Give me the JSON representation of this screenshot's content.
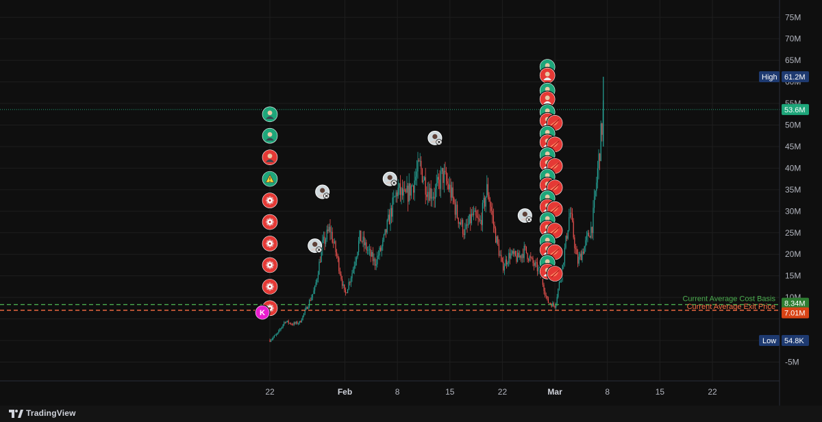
{
  "brand": {
    "name": "TradingView",
    "logo_icon": "tradingview-logo-icon"
  },
  "colors": {
    "background": "#0f0f0f",
    "grid": "#1e1e1e",
    "candle_up": "#26a69a",
    "candle_down": "#ef5350",
    "cost_basis": "#4caf50",
    "exit_price": "#ff7043",
    "last_price": "#1ea67a",
    "high_low_tag": "#1e3a70",
    "marker_buy": "#1ea67a",
    "marker_sell": "#e53935",
    "marker_magenta": "#e91ecf"
  },
  "chart_data": {
    "type": "candlestick",
    "y_axis": {
      "ticks": [
        -5,
        0,
        5,
        10,
        15,
        20,
        25,
        30,
        35,
        40,
        45,
        50,
        55,
        60,
        65,
        70,
        75
      ],
      "tick_labels": [
        "-5M",
        "",
        "",
        "10M",
        "15M",
        "20M",
        "25M",
        "30M",
        "35M",
        "40M",
        "45M",
        "50M",
        "55M",
        "60M",
        "65M",
        "70M",
        "75M"
      ],
      "range": [
        -7,
        78
      ],
      "unit": "M"
    },
    "x_axis": {
      "ticks": [
        "2025-01-22",
        "2025-02-01",
        "2025-02-08",
        "2025-02-15",
        "2025-02-22",
        "2025-03-01",
        "2025-03-08",
        "2025-03-15",
        "2025-03-22"
      ],
      "tick_labels": [
        "22",
        "Feb",
        "8",
        "15",
        "22",
        "Mar",
        "8",
        "15",
        "22"
      ],
      "major_ticks": [
        "Feb",
        "Mar"
      ],
      "range": [
        "2025-01-02",
        "2025-03-31"
      ]
    },
    "price_path": [
      [
        "2025-01-22",
        0.05
      ],
      [
        "2025-01-23",
        1.5
      ],
      [
        "2025-01-24",
        4.5
      ],
      [
        "2025-01-25",
        3.8
      ],
      [
        "2025-01-26",
        4.2
      ],
      [
        "2025-01-27",
        8.0
      ],
      [
        "2025-01-28",
        12.0
      ],
      [
        "2025-01-29",
        22.0
      ],
      [
        "2025-01-30",
        26.0
      ],
      [
        "2025-01-31",
        19.0
      ],
      [
        "2025-02-01",
        10.5
      ],
      [
        "2025-02-02",
        16.0
      ],
      [
        "2025-02-03",
        24.0
      ],
      [
        "2025-02-04",
        21.0
      ],
      [
        "2025-02-05",
        18.0
      ],
      [
        "2025-02-06",
        22.0
      ],
      [
        "2025-02-07",
        29.0
      ],
      [
        "2025-02-08",
        35.0
      ],
      [
        "2025-02-09",
        33.0
      ],
      [
        "2025-02-10",
        36.0
      ],
      [
        "2025-02-11",
        40.5
      ],
      [
        "2025-02-12",
        35.0
      ],
      [
        "2025-02-13",
        34.0
      ],
      [
        "2025-02-14",
        38.5
      ],
      [
        "2025-02-15",
        35.0
      ],
      [
        "2025-02-16",
        29.0
      ],
      [
        "2025-02-17",
        25.0
      ],
      [
        "2025-02-18",
        29.0
      ],
      [
        "2025-02-19",
        27.0
      ],
      [
        "2025-02-20",
        35.5
      ],
      [
        "2025-02-21",
        25.0
      ],
      [
        "2025-02-22",
        17.0
      ],
      [
        "2025-02-23",
        20.0
      ],
      [
        "2025-02-24",
        19.0
      ],
      [
        "2025-02-25",
        21.0
      ],
      [
        "2025-02-26",
        18.0
      ],
      [
        "2025-02-27",
        16.0
      ],
      [
        "2025-02-28",
        9.0
      ],
      [
        "2025-03-01",
        8.0
      ],
      [
        "2025-03-02",
        17.0
      ],
      [
        "2025-03-03",
        30.0
      ],
      [
        "2025-03-04",
        18.0
      ],
      [
        "2025-03-05",
        22.0
      ],
      [
        "2025-03-06",
        27.0
      ],
      [
        "2025-03-07",
        45.0
      ],
      [
        "2025-03-07T12:00",
        53.6
      ]
    ],
    "high": {
      "label": "High",
      "value": 61.2,
      "display": "61.2M",
      "date": "2025-03-07"
    },
    "low": {
      "label": "Low",
      "value": 0.0548,
      "display": "54.8K",
      "date": "2025-01-22"
    },
    "last_price": {
      "value": 53.6,
      "display": "53.6M"
    },
    "lines": [
      {
        "name": "Current Average Cost Basis",
        "value": 8.34,
        "display": "8.34M",
        "color": "#4caf50"
      },
      {
        "name": "Current Average Exit Price",
        "value": 7.01,
        "display": "7.01M",
        "color": "#ff7043"
      }
    ],
    "markers": [
      {
        "date": "2025-01-22",
        "value": 52.5,
        "kind": "buy",
        "icon": "avatar-man-icon"
      },
      {
        "date": "2025-01-22",
        "value": 47.5,
        "kind": "buy",
        "icon": "avatar-man-icon"
      },
      {
        "date": "2025-01-22",
        "value": 42.5,
        "kind": "sell",
        "icon": "avatar-man-icon"
      },
      {
        "date": "2025-01-22",
        "value": 37.5,
        "kind": "buy",
        "icon": "warning-icon"
      },
      {
        "date": "2025-01-22",
        "value": 32.5,
        "kind": "sell",
        "icon": "gear-icon"
      },
      {
        "date": "2025-01-22",
        "value": 27.5,
        "kind": "sell",
        "icon": "gear-icon"
      },
      {
        "date": "2025-01-22",
        "value": 22.5,
        "kind": "sell",
        "icon": "gear-icon"
      },
      {
        "date": "2025-01-22",
        "value": 17.5,
        "kind": "sell",
        "icon": "gear-icon"
      },
      {
        "date": "2025-01-22",
        "value": 12.5,
        "kind": "sell",
        "icon": "gear-icon"
      },
      {
        "date": "2025-01-22",
        "value": 7.5,
        "kind": "sell",
        "icon": "gear-icon"
      },
      {
        "date": "2025-01-21",
        "value": 6.5,
        "kind": "magenta",
        "icon": "k-letter-icon"
      },
      {
        "date": "2025-01-29",
        "value": 34.5,
        "kind": "social",
        "icon": "x-social-icon"
      },
      {
        "date": "2025-01-28",
        "value": 22.0,
        "kind": "social",
        "icon": "x-social-icon"
      },
      {
        "date": "2025-02-07",
        "value": 37.5,
        "kind": "social",
        "icon": "x-social-icon"
      },
      {
        "date": "2025-02-13",
        "value": 47.0,
        "kind": "social",
        "icon": "x-social-icon"
      },
      {
        "date": "2025-02-25",
        "value": 29.0,
        "kind": "social",
        "icon": "x-social-icon"
      },
      {
        "date": "2025-02-28",
        "value": 63.5,
        "kind": "buy",
        "icon": "avatar-icon"
      },
      {
        "date": "2025-02-28",
        "value": 61.5,
        "kind": "sell",
        "icon": "avatar-icon"
      },
      {
        "date": "2025-02-28",
        "value": 58.0,
        "kind": "buy",
        "icon": "avatar-icon"
      },
      {
        "date": "2025-02-28",
        "value": 56.0,
        "kind": "sell",
        "icon": "avatar-icon"
      },
      {
        "date": "2025-02-28",
        "value": 53.0,
        "kind": "buy",
        "icon": "avatar-icon"
      },
      {
        "date": "2025-02-28",
        "value": 51.0,
        "kind": "sell",
        "icon": "avatar-icon"
      },
      {
        "date": "2025-03-01",
        "value": 50.5,
        "kind": "sell",
        "icon": "fruit-icon"
      },
      {
        "date": "2025-02-28",
        "value": 48.0,
        "kind": "buy",
        "icon": "avatar-icon"
      },
      {
        "date": "2025-02-28",
        "value": 46.0,
        "kind": "sell",
        "icon": "avatar-icon"
      },
      {
        "date": "2025-03-01",
        "value": 45.5,
        "kind": "sell",
        "icon": "fruit-icon"
      },
      {
        "date": "2025-02-28",
        "value": 43.0,
        "kind": "buy",
        "icon": "avatar-icon"
      },
      {
        "date": "2025-02-28",
        "value": 41.0,
        "kind": "sell",
        "icon": "avatar-icon"
      },
      {
        "date": "2025-03-01",
        "value": 40.5,
        "kind": "sell",
        "icon": "fruit-icon"
      },
      {
        "date": "2025-02-28",
        "value": 38.0,
        "kind": "buy",
        "icon": "avatar-icon"
      },
      {
        "date": "2025-02-28",
        "value": 36.0,
        "kind": "sell",
        "icon": "avatar-icon"
      },
      {
        "date": "2025-03-01",
        "value": 35.5,
        "kind": "sell",
        "icon": "fruit-icon"
      },
      {
        "date": "2025-02-28",
        "value": 33.0,
        "kind": "buy",
        "icon": "avatar-icon"
      },
      {
        "date": "2025-02-28",
        "value": 31.0,
        "kind": "sell",
        "icon": "avatar-icon"
      },
      {
        "date": "2025-03-01",
        "value": 30.5,
        "kind": "sell",
        "icon": "fruit-icon"
      },
      {
        "date": "2025-02-28",
        "value": 28.0,
        "kind": "buy",
        "icon": "avatar-icon"
      },
      {
        "date": "2025-02-28",
        "value": 26.0,
        "kind": "sell",
        "icon": "avatar-icon"
      },
      {
        "date": "2025-03-01",
        "value": 25.5,
        "kind": "sell",
        "icon": "fruit-icon"
      },
      {
        "date": "2025-02-28",
        "value": 23.0,
        "kind": "buy",
        "icon": "avatar-icon"
      },
      {
        "date": "2025-02-28",
        "value": 21.0,
        "kind": "sell",
        "icon": "avatar-icon"
      },
      {
        "date": "2025-03-01",
        "value": 20.5,
        "kind": "sell",
        "icon": "fruit-icon"
      },
      {
        "date": "2025-02-28",
        "value": 18.0,
        "kind": "buy",
        "icon": "avatar-icon"
      },
      {
        "date": "2025-02-28",
        "value": 16.0,
        "kind": "sell",
        "icon": "avatar-icon"
      },
      {
        "date": "2025-03-01",
        "value": 15.5,
        "kind": "sell",
        "icon": "fruit-icon"
      }
    ]
  }
}
